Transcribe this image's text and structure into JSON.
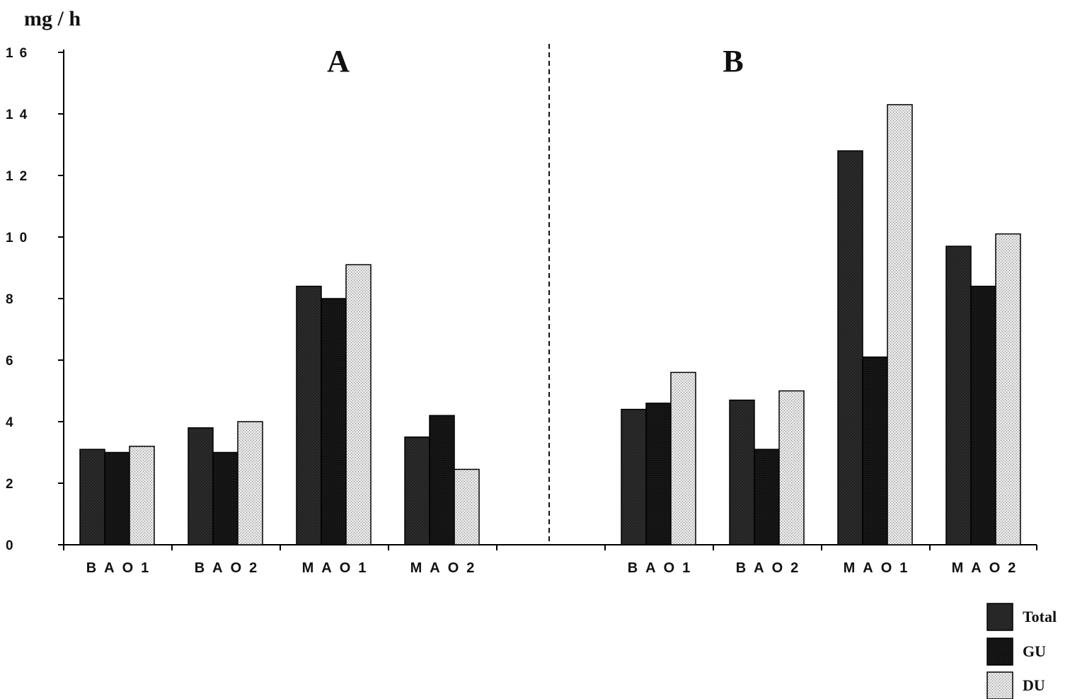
{
  "chart_data": {
    "type": "bar",
    "ylabel": "mg / h",
    "ylim": [
      0,
      16
    ],
    "yticks": [
      "0",
      "2",
      "4",
      "6",
      "8",
      "10",
      "12",
      "14",
      "16"
    ],
    "tick_values": [
      0,
      2,
      4,
      6,
      8,
      10,
      12,
      14,
      16
    ],
    "colors": {
      "Total": "#1f1f1f",
      "GU": "#111111",
      "DU": "#d9d9d9"
    },
    "panels": [
      {
        "label": "A",
        "categories": [
          "BAO1",
          "BAO2",
          "MAO1",
          "MAO2"
        ],
        "series": [
          {
            "name": "Total",
            "values": [
              3.1,
              3.8,
              8.4,
              3.5
            ]
          },
          {
            "name": "GU",
            "values": [
              3.0,
              3.0,
              8.0,
              4.2
            ]
          },
          {
            "name": "DU",
            "values": [
              3.2,
              4.0,
              9.1,
              2.45
            ]
          }
        ]
      },
      {
        "label": "B",
        "categories": [
          "BAO1",
          "BAO2",
          "MAO1",
          "MAO2"
        ],
        "series": [
          {
            "name": "Total",
            "values": [
              4.4,
              4.7,
              12.8,
              9.7
            ]
          },
          {
            "name": "GU",
            "values": [
              4.6,
              3.1,
              6.1,
              8.4
            ]
          },
          {
            "name": "DU",
            "values": [
              5.6,
              5.0,
              14.3,
              10.1
            ]
          }
        ]
      }
    ],
    "legend": [
      "Total",
      "GU",
      "DU"
    ],
    "legend_position": "bottom-right",
    "grid": false
  }
}
